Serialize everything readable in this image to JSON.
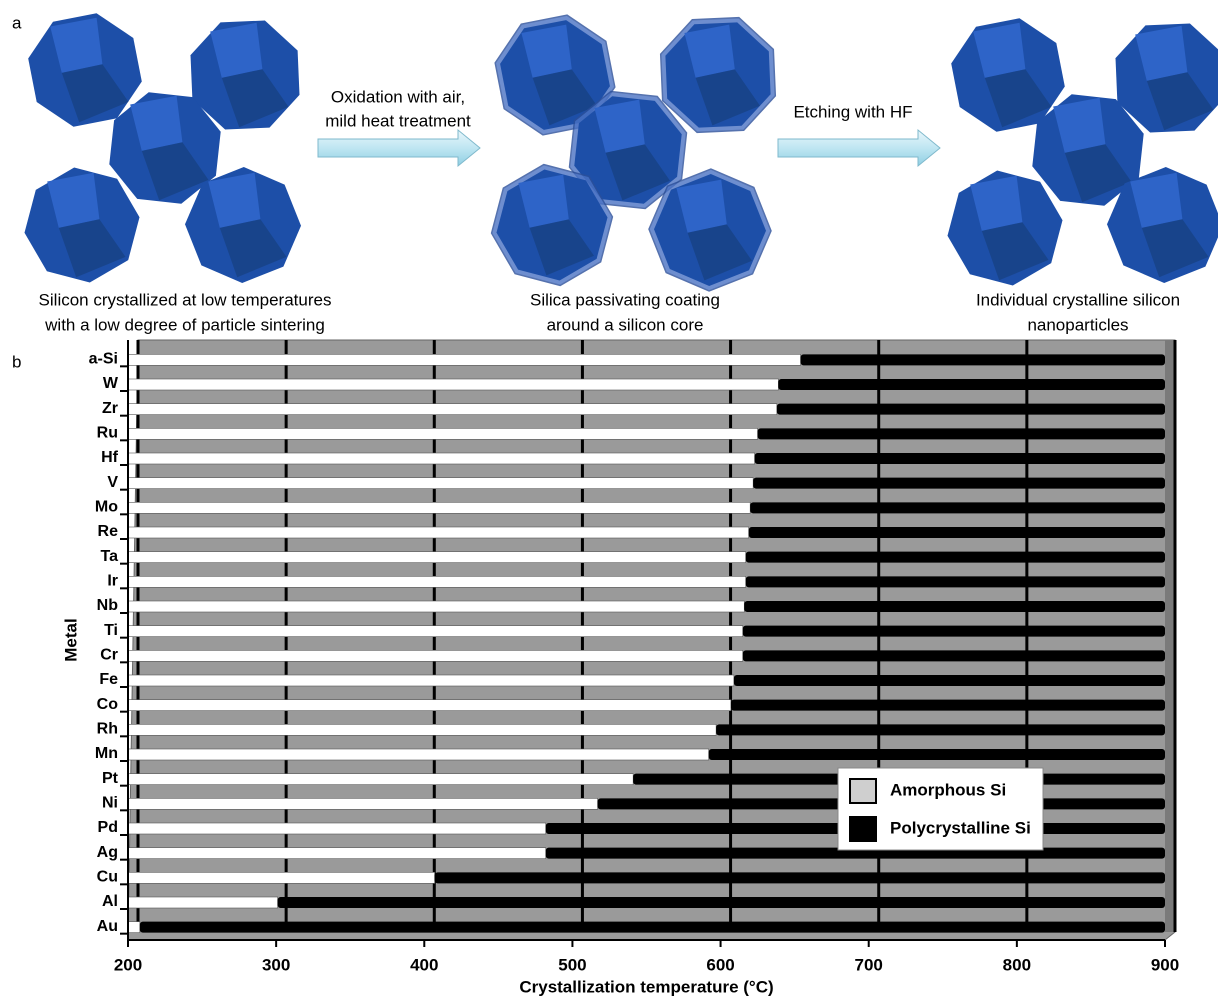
{
  "panel_a": {
    "label": "a",
    "steps": [
      {
        "caption": [
          "Silicon crystallized at low temperatures",
          "with a low degree of particle sintering"
        ]
      },
      {
        "caption": [
          "Silica passivating coating",
          "around a silicon core"
        ]
      },
      {
        "caption": [
          "Individual crystalline silicon",
          "nanoparticles"
        ]
      }
    ],
    "arrows": [
      [
        "Oxidation with air,",
        "mild heat treatment"
      ],
      [
        "Etching with HF"
      ]
    ]
  },
  "chart_data": {
    "type": "bar",
    "panel_label": "b",
    "orientation": "horizontal",
    "xlabel": "Crystallization temperature (°C)",
    "ylabel": "Metal",
    "categories": [
      "a-Si",
      "W",
      "Zr",
      "Ru",
      "Hf",
      "V",
      "Mo",
      "Re",
      "Ta",
      "Ir",
      "Nb",
      "Ti",
      "Cr",
      "Fe",
      "Co",
      "Rh",
      "Mn",
      "Pt",
      "Ni",
      "Pd",
      "Ag",
      "Cu",
      "Al",
      "Au"
    ],
    "values": [
      654,
      639,
      638,
      625,
      623,
      622,
      620,
      619,
      617,
      617,
      616,
      615,
      615,
      609,
      607,
      597,
      592,
      541,
      517,
      482,
      482,
      407,
      301,
      208
    ],
    "series": [
      {
        "name": "Amorphous Si",
        "color": "#ffffff"
      },
      {
        "name": "Polycrystalline Si",
        "color": "#000000"
      }
    ],
    "xlim": [
      200,
      900
    ],
    "xticks": [
      200,
      300,
      400,
      500,
      600,
      700,
      800,
      900
    ],
    "grid": true
  }
}
